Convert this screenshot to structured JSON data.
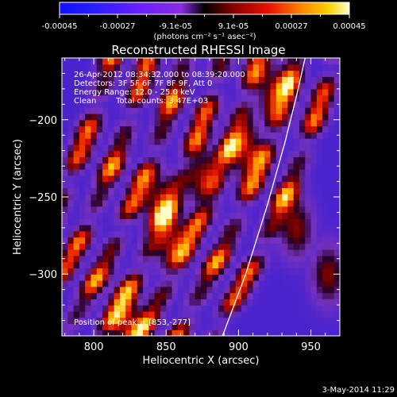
{
  "colorbar": {
    "tick_labels": [
      "-0.00045",
      "-0.00027",
      "-9.1e-05",
      "9.1e-05",
      "0.00027",
      "0.00045"
    ],
    "unit_label": "(photons cm⁻² s⁻¹ asec⁻²)",
    "range": [
      -0.00045,
      0.00045
    ]
  },
  "chart_data": {
    "type": "heatmap",
    "title": "Reconstructed RHESSI Image",
    "xlabel": "Heliocentric X (arcsec)",
    "ylabel": "Heliocentric Y (arcsec)",
    "xlim": [
      778,
      970
    ],
    "ylim": [
      -340,
      -160
    ],
    "x_ticks": [
      800,
      850,
      900,
      950
    ],
    "y_ticks": [
      -200,
      -250,
      -300
    ],
    "annotations": [
      "26-Apr-2012 08:34:32.000 to 08:39:20.000",
      "Detectors: 3F 5F 6F 7F 8F 9F, Att 0",
      "Energy Range: 12.0 - 25.0 keV",
      "Clean",
      "Total counts: 3.47E+03"
    ],
    "peak_label": "Position of peak = [853,-277]",
    "peak_position": [
      853,
      -277
    ],
    "limb_curve": [
      [
        889,
        -340
      ],
      [
        905,
        -300
      ],
      [
        920,
        -255
      ],
      [
        932,
        -215
      ],
      [
        940,
        -185
      ],
      [
        946,
        -160
      ]
    ],
    "stripe_pattern": {
      "ridge_x_at_top": [
        812,
        838,
        863,
        889,
        914,
        940,
        966
      ],
      "slope_dx_per_dy": 0.3,
      "bright_spots": [
        [
          853,
          -277
        ],
        [
          846,
          -255
        ],
        [
          822,
          -330
        ],
        [
          876,
          -238
        ],
        [
          905,
          -218
        ],
        [
          925,
          -185
        ],
        [
          940,
          -270
        ],
        [
          962,
          -300
        ]
      ]
    }
  },
  "footer": {
    "date": "3-May-2014 11:29"
  }
}
